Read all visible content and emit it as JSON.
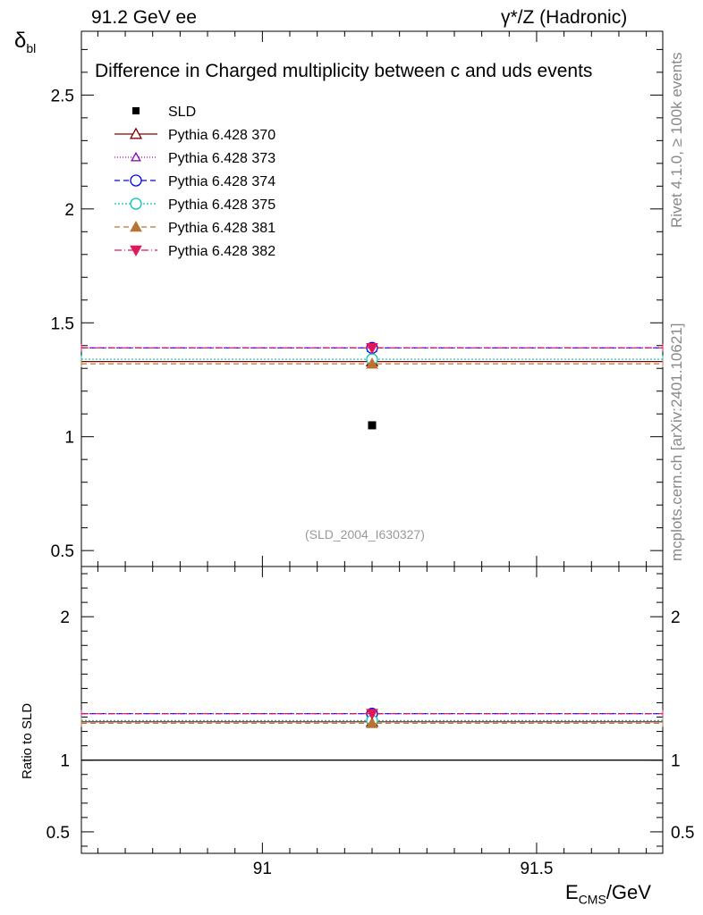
{
  "header": {
    "left": "91.2 GeV ee",
    "right": "γ*/Z (Hadronic)"
  },
  "side_labels": {
    "rivet": "Rivet 4.1.0, ≥ 100k events",
    "mcplots": "mcplots.cern.ch [arXiv:2401.10621]"
  },
  "chart_data": {
    "type": "scatter",
    "title": "Difference in Charged multiplicity between c and uds events",
    "analysis_tag": "(SLD_2004_I630327)",
    "ylabel": "δ",
    "ylabel_sub": "bl",
    "xlabel": "E",
    "xlabel_sub": "CMS",
    "xlabel_unit": "/GeV",
    "xlim": [
      90.67,
      91.73
    ],
    "main_ylim": [
      0.43,
      2.78
    ],
    "ratio_ylim": [
      0.35,
      2.35
    ],
    "ratio_ylabel": "Ratio to SLD",
    "x_ticks": [
      91,
      91.5
    ],
    "x_tick_labels": [
      "91",
      "91.5"
    ],
    "main_y_ticks": [
      0.5,
      1,
      1.5,
      2,
      2.5
    ],
    "main_y_tick_labels": [
      "0.5",
      "1",
      "1.5",
      "2",
      "2.5"
    ],
    "ratio_y_ticks": [
      0.5,
      1,
      2
    ],
    "ratio_y_tick_labels": [
      "0.5",
      "1",
      "2"
    ],
    "bin": [
      90.67,
      91.73
    ],
    "x_point": 91.2,
    "data_series": {
      "name": "SLD",
      "x": 91.2,
      "y": 1.05
    },
    "series": [
      {
        "name": "Pythia 6.428 370",
        "y": 1.33,
        "ratio": 1.267,
        "color": "#800000",
        "marker": "triangle-open",
        "dash": ""
      },
      {
        "name": "Pythia 6.428 373",
        "y": 1.39,
        "ratio": 1.324,
        "color": "#8000c0",
        "marker": "triangle-open-small",
        "dash": "1,2"
      },
      {
        "name": "Pythia 6.428 374",
        "y": 1.39,
        "ratio": 1.324,
        "color": "#0000ff",
        "marker": "circle-open",
        "dash": "6,4"
      },
      {
        "name": "Pythia 6.428 375",
        "y": 1.34,
        "ratio": 1.276,
        "color": "#00c8b4",
        "marker": "circle-open",
        "dash": "2,2"
      },
      {
        "name": "Pythia 6.428 381",
        "y": 1.32,
        "ratio": 1.257,
        "color": "#b87333",
        "marker": "triangle-filled",
        "dash": "6,4"
      },
      {
        "name": "Pythia 6.428 382",
        "y": 1.39,
        "ratio": 1.324,
        "color": "#e0185a",
        "marker": "triangle-down-filled",
        "dash": "8,3,1,3"
      }
    ]
  }
}
